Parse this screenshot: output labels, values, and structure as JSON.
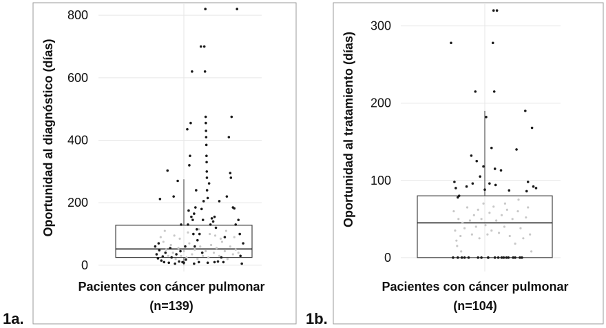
{
  "chart_data": [
    {
      "type": "box",
      "panel_label": "1a.",
      "xlabel_line1": "Pacientes con cáncer pulmonar",
      "xlabel_line2": "(n=139)",
      "ylabel": "Oportunidad al diagnóstico (días)",
      "ylim": [
        -20,
        840
      ],
      "yticks": [
        0,
        200,
        400,
        600,
        800
      ],
      "grid": true,
      "box": {
        "q1": 25,
        "median": 52,
        "q3": 128,
        "whisker_low": 0,
        "whisker_high": 275
      },
      "points_outer": [
        [
          -0.42,
          60
        ],
        [
          -0.4,
          35
        ],
        [
          -0.38,
          22
        ],
        [
          -0.37,
          70
        ],
        [
          -0.36,
          48
        ],
        [
          -0.35,
          212
        ],
        [
          -0.33,
          15
        ],
        [
          -0.31,
          28
        ],
        [
          -0.29,
          10
        ],
        [
          -0.27,
          40
        ],
        [
          -0.24,
          303
        ],
        [
          -0.22,
          8
        ],
        [
          -0.2,
          55
        ],
        [
          -0.18,
          25
        ],
        [
          -0.15,
          220
        ],
        [
          -0.13,
          5
        ],
        [
          -0.11,
          35
        ],
        [
          -0.09,
          270
        ],
        [
          -0.07,
          12
        ],
        [
          -0.05,
          45
        ],
        [
          -0.04,
          130
        ],
        [
          -0.02,
          10
        ],
        [
          0.0,
          8
        ],
        [
          0.02,
          60
        ],
        [
          0.03,
          18
        ],
        [
          0.05,
          435
        ],
        [
          0.06,
          130
        ],
        [
          0.07,
          175
        ],
        [
          0.08,
          320
        ],
        [
          0.09,
          350
        ],
        [
          0.1,
          455
        ],
        [
          0.11,
          155
        ],
        [
          0.12,
          620
        ],
        [
          0.13,
          145
        ],
        [
          0.14,
          100
        ],
        [
          0.15,
          165
        ],
        [
          0.16,
          60
        ],
        [
          0.17,
          185
        ],
        [
          0.18,
          240
        ],
        [
          0.19,
          115
        ],
        [
          0.2,
          80
        ],
        [
          0.22,
          10
        ],
        [
          0.23,
          100
        ],
        [
          0.25,
          700
        ],
        [
          0.26,
          180
        ],
        [
          0.27,
          40
        ],
        [
          0.28,
          145
        ],
        [
          0.29,
          205
        ],
        [
          0.3,
          700
        ],
        [
          0.31,
          620
        ],
        [
          0.315,
          820
        ],
        [
          0.32,
          475
        ],
        [
          0.322,
          455
        ],
        [
          0.325,
          430
        ],
        [
          0.327,
          410
        ],
        [
          0.33,
          385
        ],
        [
          0.332,
          350
        ],
        [
          0.334,
          330
        ],
        [
          0.336,
          300
        ],
        [
          0.338,
          280
        ],
        [
          0.34,
          240
        ],
        [
          0.35,
          215
        ],
        [
          0.37,
          262
        ],
        [
          0.39,
          130
        ],
        [
          0.41,
          150
        ],
        [
          0.43,
          140
        ],
        [
          0.45,
          155
        ],
        [
          0.47,
          120
        ],
        [
          0.5,
          12
        ],
        [
          0.52,
          205
        ],
        [
          0.55,
          25
        ],
        [
          0.58,
          10
        ],
        [
          0.6,
          90
        ],
        [
          0.63,
          220
        ],
        [
          0.66,
          410
        ],
        [
          0.68,
          295
        ],
        [
          0.69,
          280
        ],
        [
          0.7,
          475
        ],
        [
          0.72,
          185
        ],
        [
          0.74,
          182
        ],
        [
          0.76,
          130
        ],
        [
          0.78,
          820
        ],
        [
          0.8,
          145
        ],
        [
          0.82,
          100
        ],
        [
          0.83,
          30
        ],
        [
          0.85,
          5
        ],
        [
          0.87,
          70
        ],
        [
          0.15,
          5
        ],
        [
          0.35,
          8
        ],
        [
          0.45,
          10
        ]
      ],
      "points_inner": [
        [
          -0.34,
          90
        ],
        [
          -0.3,
          75
        ],
        [
          -0.26,
          50
        ],
        [
          -0.23,
          30
        ],
        [
          -0.19,
          65
        ],
        [
          -0.16,
          40
        ],
        [
          -0.12,
          20
        ],
        [
          -0.08,
          55
        ],
        [
          -0.04,
          30
        ],
        [
          0.0,
          45
        ],
        [
          0.04,
          25
        ],
        [
          0.08,
          70
        ],
        [
          0.12,
          35
        ],
        [
          0.16,
          50
        ],
        [
          0.2,
          20
        ],
        [
          0.24,
          60
        ],
        [
          0.28,
          30
        ],
        [
          0.32,
          45
        ],
        [
          0.36,
          25
        ],
        [
          0.4,
          65
        ],
        [
          0.44,
          40
        ],
        [
          0.48,
          55
        ],
        [
          0.52,
          30
        ],
        [
          0.56,
          75
        ],
        [
          0.6,
          45
        ],
        [
          0.64,
          20
        ],
        [
          0.68,
          60
        ],
        [
          0.72,
          35
        ],
        [
          0.76,
          50
        ],
        [
          0.8,
          40
        ],
        [
          -0.28,
          110
        ],
        [
          -0.14,
          95
        ],
        [
          0.06,
          105
        ],
        [
          0.22,
          115
        ],
        [
          0.46,
          95
        ],
        [
          0.62,
          110
        ],
        [
          0.74,
          90
        ],
        [
          0.38,
          100
        ],
        [
          -0.06,
          85
        ],
        [
          0.54,
          85
        ]
      ]
    },
    {
      "type": "box",
      "panel_label": "1b.",
      "xlabel_line1": "Pacientes con cáncer pulmonar",
      "xlabel_line2": "(n=104)",
      "ylabel": "Oportunidad al tratamiento (días)",
      "ylim": [
        -18,
        330
      ],
      "yticks": [
        0,
        100,
        200,
        300
      ],
      "grid": true,
      "box": {
        "q1": 0,
        "median": 45,
        "q3": 80,
        "whisker_low": 0,
        "whisker_high": 190
      },
      "points_outer": [
        [
          -0.5,
          278
        ],
        [
          -0.47,
          0
        ],
        [
          -0.45,
          98
        ],
        [
          -0.43,
          90
        ],
        [
          -0.4,
          78
        ],
        [
          -0.38,
          80
        ],
        [
          -0.34,
          0
        ],
        [
          -0.3,
          0
        ],
        [
          -0.27,
          92
        ],
        [
          -0.24,
          0
        ],
        [
          -0.2,
          132
        ],
        [
          -0.18,
          96
        ],
        [
          -0.14,
          215
        ],
        [
          -0.12,
          125
        ],
        [
          -0.1,
          0
        ],
        [
          -0.07,
          105
        ],
        [
          -0.05,
          0
        ],
        [
          -0.02,
          118
        ],
        [
          0.0,
          88
        ],
        [
          0.02,
          182
        ],
        [
          0.05,
          0
        ],
        [
          0.07,
          96
        ],
        [
          0.1,
          142
        ],
        [
          0.12,
          278
        ],
        [
          0.13,
          320
        ],
        [
          0.14,
          215
        ],
        [
          0.15,
          115
        ],
        [
          0.16,
          94
        ],
        [
          0.18,
          320
        ],
        [
          0.2,
          0
        ],
        [
          0.24,
          113
        ],
        [
          0.28,
          0
        ],
        [
          0.32,
          0
        ],
        [
          0.36,
          87
        ],
        [
          0.42,
          0
        ],
        [
          0.47,
          140
        ],
        [
          0.52,
          0
        ],
        [
          0.6,
          190
        ],
        [
          0.62,
          86
        ],
        [
          0.64,
          98
        ],
        [
          0.7,
          168
        ],
        [
          0.72,
          92
        ],
        [
          0.76,
          90
        ],
        [
          0.55,
          0
        ],
        [
          0.45,
          0
        ],
        [
          0.35,
          0
        ],
        [
          0.25,
          0
        ],
        [
          0.15,
          0
        ],
        [
          0.05,
          0
        ],
        [
          -0.4,
          0
        ]
      ],
      "points_inner": [
        [
          -0.46,
          60
        ],
        [
          -0.44,
          35
        ],
        [
          -0.42,
          22
        ],
        [
          -0.41,
          15
        ],
        [
          -0.39,
          50
        ],
        [
          -0.36,
          28
        ],
        [
          -0.33,
          45
        ],
        [
          -0.3,
          38
        ],
        [
          -0.26,
          65
        ],
        [
          -0.22,
          48
        ],
        [
          -0.19,
          30
        ],
        [
          -0.16,
          55
        ],
        [
          -0.13,
          40
        ],
        [
          -0.1,
          62
        ],
        [
          -0.08,
          25
        ],
        [
          -0.05,
          50
        ],
        [
          -0.02,
          70
        ],
        [
          0.01,
          42
        ],
        [
          0.04,
          30
        ],
        [
          0.07,
          58
        ],
        [
          0.1,
          35
        ],
        [
          0.13,
          66
        ],
        [
          0.17,
          48
        ],
        [
          0.21,
          32
        ],
        [
          0.25,
          55
        ],
        [
          0.29,
          40
        ],
        [
          0.33,
          62
        ],
        [
          0.37,
          28
        ],
        [
          0.41,
          50
        ],
        [
          0.45,
          18
        ],
        [
          0.49,
          60
        ],
        [
          0.53,
          38
        ],
        [
          0.57,
          25
        ],
        [
          0.61,
          52
        ],
        [
          0.64,
          65
        ],
        [
          0.67,
          30
        ],
        [
          0.69,
          8
        ],
        [
          -0.35,
          8
        ],
        [
          0.3,
          70
        ],
        [
          0.5,
          75
        ]
      ]
    }
  ]
}
